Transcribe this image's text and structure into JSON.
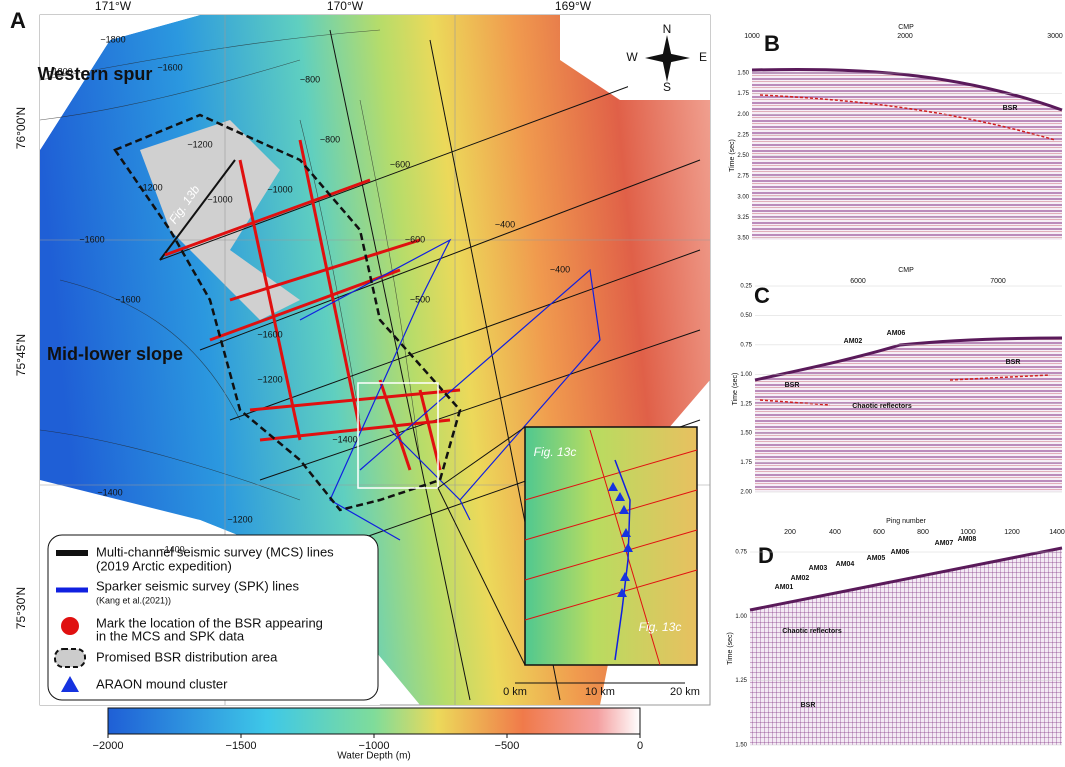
{
  "panel_a": {
    "letter": "A",
    "lon_labels": [
      "171°W",
      "170°W",
      "169°W"
    ],
    "lat_labels": [
      "76°00'N",
      "75°45'N",
      "75°30'N"
    ],
    "compass": [
      "N",
      "E",
      "S",
      "W"
    ],
    "region_labels": [
      "Western spur",
      "Mid-lower slope"
    ],
    "contour_labels": [
      "−1800",
      "−1600",
      "−1800",
      "−1200",
      "−1000",
      "−1200",
      "−1600",
      "−1600",
      "−800",
      "−600",
      "−800",
      "−600",
      "−500",
      "−400",
      "−1200",
      "−1400",
      "−1400",
      "−1200",
      "−1400",
      "−1600",
      "−1000",
      "−400"
    ],
    "fig_labels": [
      "Fig. 13b",
      "Fig. 13c",
      "Fig. 13c"
    ],
    "scale": [
      "0 km",
      "10 km",
      "20 km"
    ],
    "legend": [
      {
        "lines": [
          "Multi-channel seismic survey (MCS) lines",
          "(2019 Arctic expedition)"
        ]
      },
      {
        "lines": [
          "Sparker seismic survey (SPK) lines",
          "(Kang et al.(2021))"
        ]
      },
      {
        "lines": [
          "Mark the location of the BSR appearing",
          "in the MCS and SPK data"
        ]
      },
      {
        "lines": [
          "Promised BSR distribution area"
        ]
      },
      {
        "lines": [
          "ARAON mound cluster"
        ]
      }
    ],
    "colorbar": {
      "label": "Water Depth (m)",
      "ticks": [
        "−2000",
        "−1500",
        "−1000",
        "−500",
        "0"
      ]
    }
  },
  "panel_b": {
    "letter": "B",
    "x_title": "CMP",
    "x_ticks": [
      "1000",
      "2000",
      "3000"
    ],
    "y_title": "Time (sec)",
    "y_ticks": [
      "1.50",
      "1.75",
      "2.00",
      "2.25",
      "2.50",
      "2.75",
      "3.00",
      "3.25",
      "3.50"
    ],
    "annotations": [
      "BSR"
    ]
  },
  "panel_c": {
    "letter": "C",
    "x_title": "CMP",
    "x_ticks": [
      "6000",
      "7000"
    ],
    "y_title": "Time (sec)",
    "y_ticks": [
      "0.25",
      "0.50",
      "0.75",
      "1.00",
      "1.25",
      "1.50",
      "1.75",
      "2.00"
    ],
    "annotations": [
      "AM02",
      "AM06",
      "BSR",
      "BSR",
      "Chaotic reflectors"
    ]
  },
  "panel_d": {
    "letter": "D",
    "x_title": "Ping number",
    "x_ticks": [
      "200",
      "400",
      "600",
      "800",
      "1000",
      "1200",
      "1400"
    ],
    "y_title": "Time (sec)",
    "y_ticks": [
      "0.75",
      "1.00",
      "1.25",
      "1.50"
    ],
    "annotations": [
      "AM01",
      "AM02",
      "AM03",
      "AM04",
      "AM05",
      "AM06",
      "AM07",
      "AM08",
      "Chaotic reflectors",
      "BSR"
    ]
  }
}
